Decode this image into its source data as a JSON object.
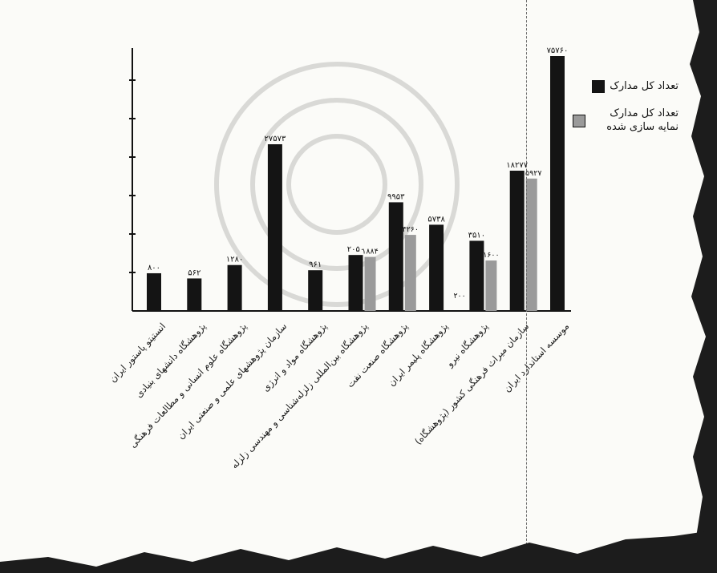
{
  "chart_data": {
    "type": "bar",
    "categories": [
      "انستیتو پاستور ایران",
      "پژوهشگاه دانشهای بنیادی",
      "پژوهشگاه علوم انسانی و مطالعات فرهنگی",
      "سازمان پژوهشهای علمی و صنعتی ایران",
      "پژوهشگاه مواد و انرژی",
      "پژوهشگاه بین‌المللی زلزله‌شناسی و مهندسی زلزله",
      "پژوهشگاه صنعت نفت",
      "پژوهشگاه پلیمر ایران",
      "پژوهشگاه نیرو",
      "سازمان میراث فرهنگی کشور (پژوهشگاه)",
      "موسسه استاندارد ایران"
    ],
    "series": [
      {
        "name": "تعداد کل مدارک",
        "color": "#141414",
        "values": [
          800,
          562,
          1280,
          27573,
          961,
          2050,
          9953,
          5738,
          3510,
          18277,
          75760
        ],
        "labels": [
          "۸۰۰",
          "۵۶۲",
          "۱۲۸۰",
          "۲۷۵۷۳",
          "۹۶۱",
          "۲۰۵۰",
          "۹۹۵۳",
          "۵۷۳۸",
          "۳۵۱۰",
          "۱۸۲۷۷",
          "۷۵۷۶۰"
        ]
      },
      {
        "name": "تعداد کل مدارک نمایه سازی شده",
        "color": "#9a9a9a",
        "values": [
          null,
          null,
          null,
          null,
          null,
          1884,
          4260,
          null,
          1600,
          15927,
          null
        ],
        "labels": [
          "",
          "",
          "",
          "",
          "",
          "۱۸۸۴",
          "۴۲۶۰",
          "",
          "۱۶۰۰",
          "۱۵۹۲۷",
          ""
        ]
      }
    ],
    "legend_position": "right",
    "grid": false
  },
  "legend": {
    "total_label": "تعداد کل مدارک",
    "indexed_label": "تعداد کل مدارک نمایه سازی شده"
  },
  "partial_label": "۲۰۰"
}
